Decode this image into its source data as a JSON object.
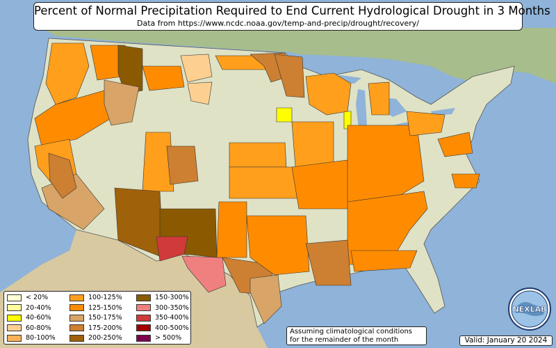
{
  "title": "Percent of Normal Precipitation Required to End Current Hydrological Drought in 3 Months",
  "subtitle": "Data from https://www.ncdc.noaa.gov/temp-and-precip/drought/recovery/",
  "legend": [
    {
      "label": "< 20%",
      "color": "#ffffd4"
    },
    {
      "label": "20-40%",
      "color": "#ffffa0"
    },
    {
      "label": "40-60%",
      "color": "#ffff00"
    },
    {
      "label": "60-80%",
      "color": "#fdd092"
    },
    {
      "label": "80-100%",
      "color": "#fbb15a"
    },
    {
      "label": "100-125%",
      "color": "#ff9f1c"
    },
    {
      "label": "125-150%",
      "color": "#ff8c00"
    },
    {
      "label": "150-175%",
      "color": "#d8a468"
    },
    {
      "label": "175-200%",
      "color": "#cd7f32"
    },
    {
      "label": "200-250%",
      "color": "#a0610b"
    },
    {
      "label": "150-300%",
      "color": "#8b5a00"
    },
    {
      "label": "300-350%",
      "color": "#f08080"
    },
    {
      "label": "350-400%",
      "color": "#d03a3a"
    },
    {
      "label": "400-500%",
      "color": "#a00000"
    },
    {
      "label": "> 500%",
      "color": "#800050"
    }
  ],
  "note": {
    "line1": "Assuming climatological conditions",
    "line2": "for the remainder of the month"
  },
  "valid": "Valid: January 20 2024",
  "logo": {
    "text": "NEXLAB"
  },
  "colors": {
    "ocean": "#8fb3d9",
    "land": "#dfe2c5",
    "canada": "#a7bd8c",
    "mexico": "#d8c9a0"
  }
}
